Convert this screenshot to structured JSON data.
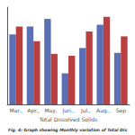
{
  "chart_data": {
    "type": "bar",
    "xlabel": "Total Dissolved Solids",
    "annotations": [
      "Fig. 4: Graph showing Monthly variation of Total Dis"
    ],
    "categories": [
      "Mar.,",
      "Apr.,",
      "May,",
      "Jun.,",
      "Jul.,",
      "Aug.,",
      "Sep"
    ],
    "series": [
      {
        "color": "#5b6fb5",
        "values": [
          0.72,
          0.8,
          0.88,
          0.32,
          0.58,
          0.82,
          0.53
        ]
      },
      {
        "color": "#b84040",
        "values": [
          0.8,
          0.65,
          0.52,
          0.5,
          0.75,
          0.9,
          0.7
        ]
      }
    ],
    "ylim": [
      0,
      1.0
    ],
    "yticks": [],
    "tick_labels": "x",
    "grid": false
  }
}
